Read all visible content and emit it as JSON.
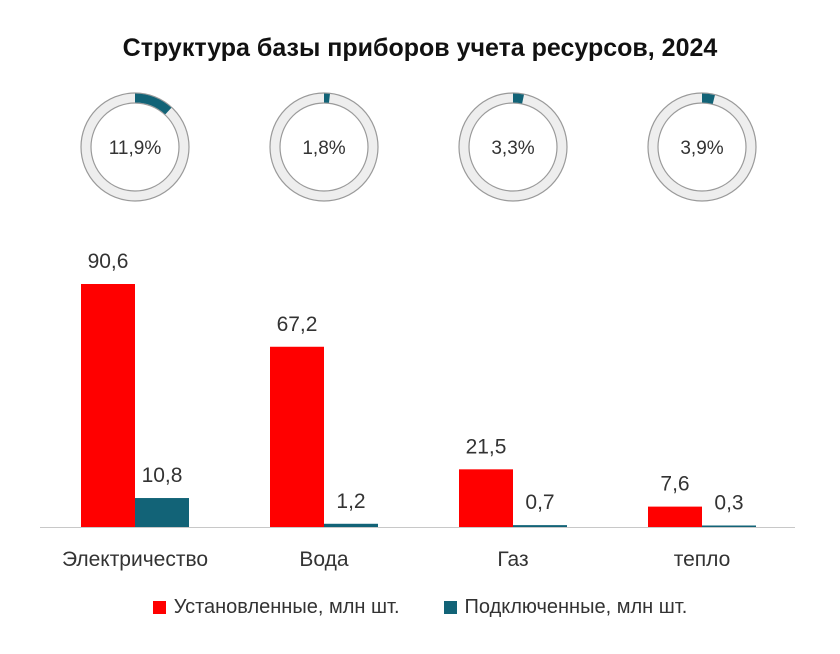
{
  "chart_data": {
    "type": "bar",
    "title": "Структура базы приборов учета ресурсов, 2024",
    "categories": [
      "Электричество",
      "Вода",
      "Газ",
      "тепло"
    ],
    "series": [
      {
        "name": "Установленные, млн шт.",
        "color": "#ff0000",
        "values": [
          90.6,
          67.2,
          21.5,
          7.6
        ],
        "labels": [
          "90,6",
          "67,2",
          "21,5",
          "7,6"
        ]
      },
      {
        "name": "Подключенные, млн шт.",
        "color": "#126377",
        "values": [
          10.8,
          1.2,
          0.7,
          0.3
        ],
        "labels": [
          "10,8",
          "1,2",
          "0,7",
          "0,3"
        ]
      }
    ],
    "ylim": [
      0,
      90.6
    ],
    "grid": false,
    "legend": "bottom",
    "donuts": {
      "values": [
        11.9,
        1.8,
        3.3,
        3.9
      ],
      "labels": [
        "11,9%",
        "1,8%",
        "3,3%",
        "3,9%"
      ],
      "track_color": "#eeeeee",
      "fill_color": "#126377"
    }
  }
}
